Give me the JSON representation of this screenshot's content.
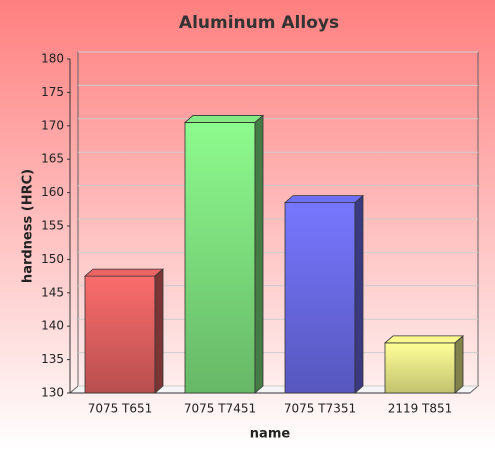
{
  "chart_data": {
    "type": "bar3d",
    "title": "Aluminum Alloys",
    "x_label": "name",
    "y_label": "hardness (HRC)",
    "categories": [
      "7075 T651",
      "7075 T7451",
      "7075 T7351",
      "2119 T851"
    ],
    "values": [
      147.5,
      170.5,
      158.5,
      137.5
    ],
    "colors": [
      "#e06060",
      "#7ee07e",
      "#6a6ae8",
      "#ecec88"
    ],
    "ylim": [
      130,
      180
    ],
    "yticks": [
      130,
      135,
      140,
      145,
      150,
      155,
      160,
      165,
      170,
      175,
      180
    ],
    "grid": true
  }
}
